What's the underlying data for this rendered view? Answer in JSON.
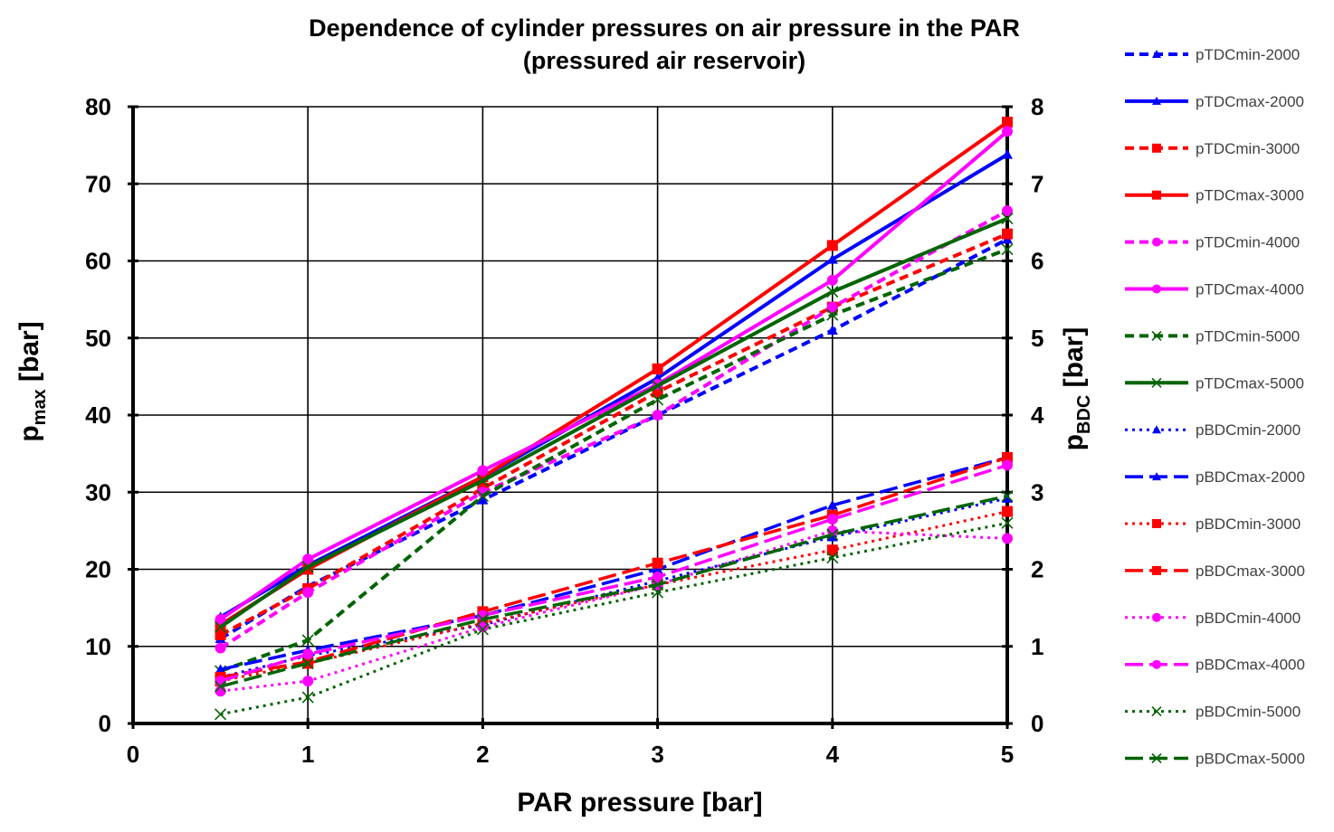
{
  "chart_data": {
    "type": "line",
    "title": [
      "Dependence of cylinder pressures on air pressure in the PAR",
      "(pressured air reservoir)"
    ],
    "xlabel": "PAR pressure [bar]",
    "ylabel_left": {
      "main": "p",
      "sub": "max",
      "rest": " [bar]"
    },
    "ylabel_right": {
      "main": "p",
      "sub": "BDC",
      "rest": " [bar]"
    },
    "xlim": [
      0,
      5
    ],
    "ylim_left": [
      0,
      80
    ],
    "ylim_right": [
      0,
      8
    ],
    "x_ticks": [
      "0",
      "1",
      "2",
      "3",
      "4",
      "5"
    ],
    "y_ticks_left": [
      "0",
      "10",
      "20",
      "30",
      "40",
      "50",
      "60",
      "70",
      "80"
    ],
    "y_ticks_right": [
      "0",
      "1",
      "2",
      "3",
      "4",
      "5",
      "6",
      "7",
      "8"
    ],
    "grid": true,
    "legend_position": "right",
    "x": [
      0.5,
      1,
      2,
      3,
      4,
      5
    ],
    "series": [
      {
        "name": "pTDCmin-2000",
        "axis": "left",
        "color": "#0000ff",
        "dash": "dash",
        "marker": "triangle",
        "values": [
          11.0,
          17.8,
          29.0,
          40.0,
          51.0,
          62.8
        ]
      },
      {
        "name": "pTDCmax-2000",
        "axis": "left",
        "color": "#0000ff",
        "dash": "solid",
        "marker": "triangle",
        "values": [
          13.8,
          20.5,
          32.0,
          44.8,
          60.2,
          73.8
        ]
      },
      {
        "name": "pTDCmin-3000",
        "axis": "left",
        "color": "#ff0000",
        "dash": "dash",
        "marker": "square",
        "values": [
          11.5,
          17.5,
          30.5,
          43.0,
          54.0,
          63.5
        ]
      },
      {
        "name": "pTDCmax-3000",
        "axis": "left",
        "color": "#ff0000",
        "dash": "solid",
        "marker": "square",
        "values": [
          12.8,
          20.0,
          32.0,
          46.0,
          62.0,
          78.0
        ]
      },
      {
        "name": "pTDCmin-4000",
        "axis": "left",
        "color": "#ff00ff",
        "dash": "dash",
        "marker": "circle",
        "values": [
          9.8,
          17.0,
          30.0,
          40.0,
          54.0,
          66.5
        ]
      },
      {
        "name": "pTDCmax-4000",
        "axis": "left",
        "color": "#ff00ff",
        "dash": "solid",
        "marker": "circle",
        "values": [
          13.5,
          21.3,
          32.8,
          44.0,
          57.5,
          76.8
        ]
      },
      {
        "name": "pTDCmin-5000",
        "axis": "left",
        "color": "#006400",
        "dash": "dash",
        "marker": "x",
        "values": [
          6.8,
          10.8,
          29.5,
          42.0,
          53.0,
          61.5
        ]
      },
      {
        "name": "pTDCmax-5000",
        "axis": "left",
        "color": "#006400",
        "dash": "solid",
        "marker": "x",
        "values": [
          12.5,
          20.3,
          31.5,
          43.8,
          56.0,
          65.5
        ]
      },
      {
        "name": "pBDCmin-2000",
        "axis": "right",
        "color": "#0000ff",
        "dash": "dot",
        "marker": "triangle",
        "values": [
          0.6,
          0.88,
          1.28,
          1.85,
          2.42,
          2.92
        ]
      },
      {
        "name": "pBDCmax-2000",
        "axis": "right",
        "color": "#0000ff",
        "dash": "longdash",
        "marker": "triangle",
        "values": [
          0.7,
          0.95,
          1.4,
          2.0,
          2.83,
          3.45
        ]
      },
      {
        "name": "pBDCmin-3000",
        "axis": "right",
        "color": "#ff0000",
        "dash": "dot",
        "marker": "square",
        "values": [
          0.55,
          0.78,
          1.3,
          1.8,
          2.25,
          2.75
        ]
      },
      {
        "name": "pBDCmax-3000",
        "axis": "right",
        "color": "#ff0000",
        "dash": "longdash",
        "marker": "square",
        "values": [
          0.6,
          0.8,
          1.45,
          2.08,
          2.7,
          3.45
        ]
      },
      {
        "name": "pBDCmin-4000",
        "axis": "right",
        "color": "#ff00ff",
        "dash": "dot",
        "marker": "circle",
        "values": [
          0.42,
          0.55,
          1.25,
          1.8,
          2.5,
          2.4
        ]
      },
      {
        "name": "pBDCmax-4000",
        "axis": "right",
        "color": "#ff00ff",
        "dash": "longdash",
        "marker": "circle",
        "values": [
          0.55,
          0.9,
          1.4,
          1.9,
          2.65,
          3.35
        ]
      },
      {
        "name": "pBDCmin-5000",
        "axis": "right",
        "color": "#006400",
        "dash": "dot",
        "marker": "x",
        "values": [
          0.12,
          0.34,
          1.22,
          1.7,
          2.15,
          2.6
        ]
      },
      {
        "name": "pBDCmax-5000",
        "axis": "right",
        "color": "#006400",
        "dash": "longdash",
        "marker": "x",
        "values": [
          0.48,
          0.78,
          1.35,
          1.8,
          2.45,
          2.95
        ]
      }
    ]
  }
}
